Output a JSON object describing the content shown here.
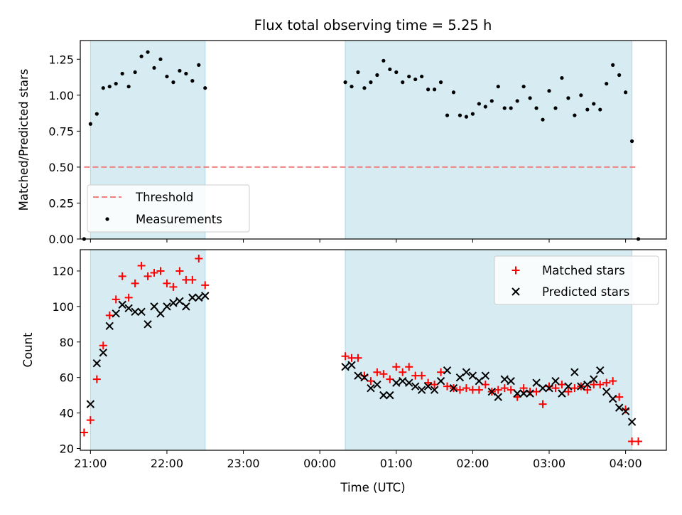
{
  "figure": {
    "title": "Flux total observing time = 5.25 h",
    "xlabel": "Time (UTC)"
  },
  "colors": {
    "shade": "#add8e6",
    "threshold": "#f08080",
    "matched": "#ff0000",
    "predicted": "#000000",
    "measurement": "#000000"
  },
  "chart_data": [
    {
      "type": "scatter",
      "name": "ratio-panel",
      "ylabel": "Matched/Predicted stars",
      "xlim": [
        "20:52",
        "04:32"
      ],
      "ylim": [
        0,
        1.38
      ],
      "yticks": [
        0,
        0.25,
        0.5,
        0.75,
        1.0,
        1.25
      ],
      "ytick_labels": [
        "0.00",
        "0.25",
        "0.50",
        "0.75",
        "1.00",
        "1.25"
      ],
      "grid": false,
      "legend_position": "lower-left",
      "shaded_intervals": [
        [
          "21:00",
          "22:30"
        ],
        [
          "00:20",
          "04:05"
        ]
      ],
      "threshold": {
        "name": "Threshold",
        "value": 0.5,
        "x_range": [
          "20:55",
          "04:10"
        ],
        "style": "dashed"
      },
      "series": [
        {
          "name": "Measurements",
          "marker": "dot",
          "points": [
            [
              "20:55",
              0.0
            ],
            [
              "21:00",
              0.8
            ],
            [
              "21:05",
              0.87
            ],
            [
              "21:10",
              1.05
            ],
            [
              "21:15",
              1.06
            ],
            [
              "21:20",
              1.08
            ],
            [
              "21:25",
              1.15
            ],
            [
              "21:30",
              1.06
            ],
            [
              "21:35",
              1.16
            ],
            [
              "21:40",
              1.27
            ],
            [
              "21:45",
              1.3
            ],
            [
              "21:50",
              1.19
            ],
            [
              "21:55",
              1.25
            ],
            [
              "22:00",
              1.13
            ],
            [
              "22:05",
              1.09
            ],
            [
              "22:10",
              1.17
            ],
            [
              "22:15",
              1.15
            ],
            [
              "22:20",
              1.1
            ],
            [
              "22:25",
              1.21
            ],
            [
              "22:30",
              1.05
            ],
            [
              "00:20",
              1.09
            ],
            [
              "00:25",
              1.06
            ],
            [
              "00:30",
              1.16
            ],
            [
              "00:35",
              1.05
            ],
            [
              "00:40",
              1.09
            ],
            [
              "00:45",
              1.14
            ],
            [
              "00:50",
              1.24
            ],
            [
              "00:55",
              1.18
            ],
            [
              "01:00",
              1.16
            ],
            [
              "01:05",
              1.09
            ],
            [
              "01:10",
              1.13
            ],
            [
              "01:15",
              1.11
            ],
            [
              "01:20",
              1.13
            ],
            [
              "01:25",
              1.04
            ],
            [
              "01:30",
              1.04
            ],
            [
              "01:35",
              1.09
            ],
            [
              "01:40",
              0.86
            ],
            [
              "01:45",
              1.02
            ],
            [
              "01:50",
              0.86
            ],
            [
              "01:55",
              0.85
            ],
            [
              "02:00",
              0.87
            ],
            [
              "02:05",
              0.94
            ],
            [
              "02:10",
              0.92
            ],
            [
              "02:15",
              0.96
            ],
            [
              "02:20",
              1.06
            ],
            [
              "02:25",
              0.91
            ],
            [
              "02:30",
              0.91
            ],
            [
              "02:35",
              0.96
            ],
            [
              "02:40",
              1.06
            ],
            [
              "02:45",
              0.98
            ],
            [
              "02:50",
              0.91
            ],
            [
              "02:55",
              0.83
            ],
            [
              "03:00",
              1.03
            ],
            [
              "03:05",
              0.91
            ],
            [
              "03:10",
              1.12
            ],
            [
              "03:15",
              0.98
            ],
            [
              "03:20",
              0.86
            ],
            [
              "03:25",
              1.0
            ],
            [
              "03:30",
              0.9
            ],
            [
              "03:35",
              0.94
            ],
            [
              "03:40",
              0.9
            ],
            [
              "03:45",
              1.08
            ],
            [
              "03:50",
              1.21
            ],
            [
              "03:55",
              1.14
            ],
            [
              "04:00",
              1.02
            ],
            [
              "04:05",
              0.68
            ],
            [
              "04:10",
              0.0
            ]
          ]
        }
      ]
    },
    {
      "type": "scatter",
      "name": "count-panel",
      "ylabel": "Count",
      "xlabel": "Time (UTC)",
      "xlim": [
        "20:52",
        "04:32"
      ],
      "ylim": [
        19,
        132
      ],
      "yticks": [
        20,
        40,
        60,
        80,
        100,
        120
      ],
      "ytick_labels": [
        "20",
        "40",
        "60",
        "80",
        "100",
        "120"
      ],
      "xticks": [
        "21:00",
        "22:00",
        "23:00",
        "00:00",
        "01:00",
        "02:00",
        "03:00",
        "04:00"
      ],
      "grid": false,
      "legend_position": "top-right",
      "shaded_intervals": [
        [
          "21:00",
          "22:30"
        ],
        [
          "00:20",
          "04:05"
        ]
      ],
      "series": [
        {
          "name": "Matched stars",
          "marker": "plus",
          "points": [
            [
              "20:55",
              29
            ],
            [
              "21:00",
              36
            ],
            [
              "21:05",
              59
            ],
            [
              "21:10",
              78
            ],
            [
              "21:15",
              95
            ],
            [
              "21:20",
              104
            ],
            [
              "21:25",
              117
            ],
            [
              "21:30",
              105
            ],
            [
              "21:35",
              113
            ],
            [
              "21:40",
              123
            ],
            [
              "21:45",
              117
            ],
            [
              "21:50",
              119
            ],
            [
              "21:55",
              120
            ],
            [
              "22:00",
              113
            ],
            [
              "22:05",
              111
            ],
            [
              "22:10",
              120
            ],
            [
              "22:15",
              115
            ],
            [
              "22:20",
              115
            ],
            [
              "22:25",
              127
            ],
            [
              "22:30",
              112
            ],
            [
              "00:20",
              72
            ],
            [
              "00:25",
              71
            ],
            [
              "00:30",
              71
            ],
            [
              "00:35",
              61
            ],
            [
              "00:40",
              58
            ],
            [
              "00:45",
              63
            ],
            [
              "00:50",
              62
            ],
            [
              "00:55",
              59
            ],
            [
              "01:00",
              66
            ],
            [
              "01:05",
              63
            ],
            [
              "01:10",
              66
            ],
            [
              "01:15",
              61
            ],
            [
              "01:20",
              61
            ],
            [
              "01:25",
              57
            ],
            [
              "01:30",
              56
            ],
            [
              "01:35",
              63
            ],
            [
              "01:40",
              55
            ],
            [
              "01:45",
              54
            ],
            [
              "01:50",
              53
            ],
            [
              "01:55",
              54
            ],
            [
              "02:00",
              53
            ],
            [
              "02:05",
              53
            ],
            [
              "02:10",
              56
            ],
            [
              "02:15",
              52
            ],
            [
              "02:20",
              53
            ],
            [
              "02:25",
              54
            ],
            [
              "02:30",
              53
            ],
            [
              "02:35",
              49
            ],
            [
              "02:40",
              54
            ],
            [
              "02:45",
              52
            ],
            [
              "02:50",
              52
            ],
            [
              "02:55",
              45
            ],
            [
              "03:00",
              55
            ],
            [
              "03:05",
              54
            ],
            [
              "03:10",
              56
            ],
            [
              "03:15",
              52
            ],
            [
              "03:20",
              54
            ],
            [
              "03:25",
              55
            ],
            [
              "03:30",
              53
            ],
            [
              "03:35",
              56
            ],
            [
              "03:40",
              56
            ],
            [
              "03:45",
              57
            ],
            [
              "03:50",
              58
            ],
            [
              "03:55",
              49
            ],
            [
              "04:00",
              42
            ],
            [
              "04:05",
              24
            ],
            [
              "04:10",
              24
            ]
          ]
        },
        {
          "name": "Predicted stars",
          "marker": "x",
          "points": [
            [
              "21:00",
              45
            ],
            [
              "21:05",
              68
            ],
            [
              "21:10",
              74
            ],
            [
              "21:15",
              89
            ],
            [
              "21:20",
              96
            ],
            [
              "21:25",
              101
            ],
            [
              "21:30",
              99
            ],
            [
              "21:35",
              97
            ],
            [
              "21:40",
              97
            ],
            [
              "21:45",
              90
            ],
            [
              "21:50",
              100
            ],
            [
              "21:55",
              96
            ],
            [
              "22:00",
              100
            ],
            [
              "22:05",
              102
            ],
            [
              "22:10",
              103
            ],
            [
              "22:15",
              100
            ],
            [
              "22:20",
              105
            ],
            [
              "22:25",
              105
            ],
            [
              "22:30",
              106
            ],
            [
              "00:20",
              66
            ],
            [
              "00:25",
              67
            ],
            [
              "00:30",
              61
            ],
            [
              "00:35",
              60
            ],
            [
              "00:40",
              54
            ],
            [
              "00:45",
              56
            ],
            [
              "00:50",
              50
            ],
            [
              "00:55",
              50
            ],
            [
              "01:00",
              57
            ],
            [
              "01:05",
              58
            ],
            [
              "01:10",
              57
            ],
            [
              "01:15",
              55
            ],
            [
              "01:20",
              53
            ],
            [
              "01:25",
              55
            ],
            [
              "01:30",
              53
            ],
            [
              "01:35",
              58
            ],
            [
              "01:40",
              64
            ],
            [
              "01:45",
              54
            ],
            [
              "01:50",
              60
            ],
            [
              "01:55",
              63
            ],
            [
              "02:00",
              61
            ],
            [
              "02:05",
              58
            ],
            [
              "02:10",
              61
            ],
            [
              "02:15",
              52
            ],
            [
              "02:20",
              49
            ],
            [
              "02:25",
              59
            ],
            [
              "02:30",
              58
            ],
            [
              "02:35",
              51
            ],
            [
              "02:40",
              51
            ],
            [
              "02:45",
              51
            ],
            [
              "02:50",
              57
            ],
            [
              "02:55",
              54
            ],
            [
              "03:00",
              54
            ],
            [
              "03:05",
              58
            ],
            [
              "03:10",
              51
            ],
            [
              "03:15",
              55
            ],
            [
              "03:20",
              63
            ],
            [
              "03:25",
              55
            ],
            [
              "03:30",
              56
            ],
            [
              "03:35",
              59
            ],
            [
              "03:40",
              64
            ],
            [
              "03:45",
              52
            ],
            [
              "03:50",
              48
            ],
            [
              "03:55",
              43
            ],
            [
              "04:00",
              41
            ],
            [
              "04:05",
              35
            ]
          ]
        }
      ]
    }
  ]
}
